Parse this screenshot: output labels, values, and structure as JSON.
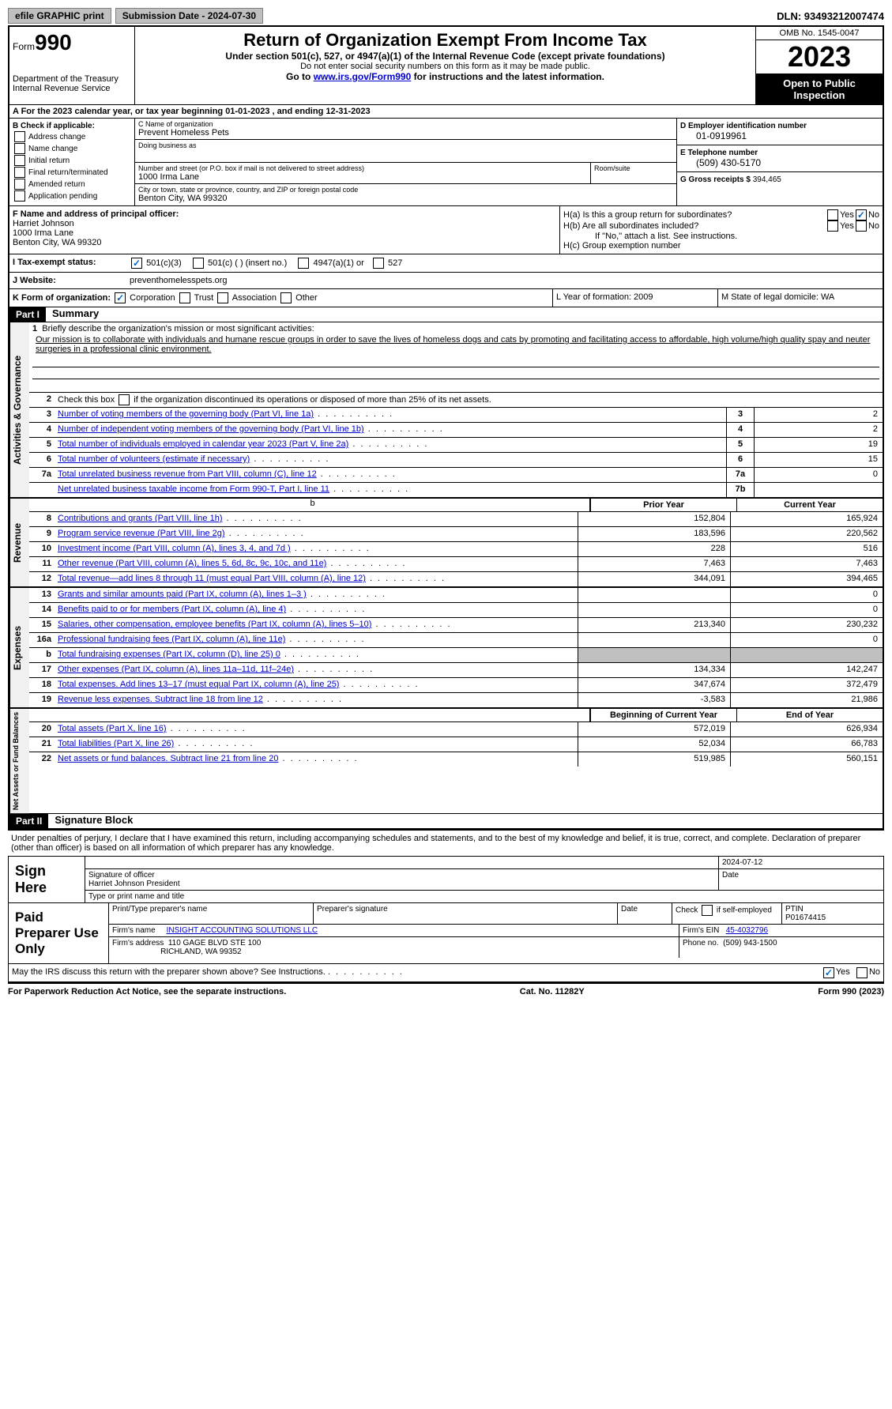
{
  "top_bar": {
    "efile_btn": "efile GRAPHIC print",
    "submission_label": "Submission Date - 2024-07-30",
    "dln": "DLN: 93493212007474"
  },
  "header": {
    "form_word": "Form",
    "form_number": "990",
    "title": "Return of Organization Exempt From Income Tax",
    "subtitle": "Under section 501(c), 527, or 4947(a)(1) of the Internal Revenue Code (except private foundations)",
    "ssn_note": "Do not enter social security numbers on this form as it may be made public.",
    "goto": "Go to ",
    "goto_link": "www.irs.gov/Form990",
    "goto_suffix": " for instructions and the latest information.",
    "dept": "Department of the Treasury",
    "irs": "Internal Revenue Service",
    "omb": "OMB No. 1545-0047",
    "year": "2023",
    "open": "Open to Public Inspection"
  },
  "row_a": {
    "text": "A  For the 2023 calendar year, or tax year beginning 01-01-2023    , and ending 12-31-2023"
  },
  "col_b": {
    "label": "B Check if applicable:",
    "items": [
      "Address change",
      "Name change",
      "Initial return",
      "Final return/terminated",
      "Amended return",
      "Application pending"
    ]
  },
  "col_c": {
    "name_label": "C Name of organization",
    "name_value": "Prevent Homeless Pets",
    "dba_label": "Doing business as",
    "dba_value": "",
    "street_label": "Number and street (or P.O. box if mail is not delivered to street address)",
    "street_value": "1000 Irma Lane",
    "room_label": "Room/suite",
    "city_label": "City or town, state or province, country, and ZIP or foreign postal code",
    "city_value": "Benton City, WA  99320"
  },
  "col_d": {
    "ein_label": "D Employer identification number",
    "ein_value": "01-0919961",
    "phone_label": "E Telephone number",
    "phone_value": "(509) 430-5170",
    "gross_label": "G Gross receipts $",
    "gross_value": "394,465"
  },
  "col_f": {
    "label": "F  Name and address of principal officer:",
    "name": "Harriet Johnson",
    "street": "1000 Irma Lane",
    "city": "Benton City, WA  99320"
  },
  "col_h": {
    "ha_label": "H(a)  Is this a group return for subordinates?",
    "hb_label": "H(b)  Are all subordinates included?",
    "hb_note": "If \"No,\" attach a list. See instructions.",
    "hc_label": "H(c)  Group exemption number",
    "yes": "Yes",
    "no": "No"
  },
  "row_i": {
    "label": "I       Tax-exempt status:",
    "opt1": "501(c)(3)",
    "opt2": "501(c) (  ) (insert no.)",
    "opt3": "4947(a)(1) or",
    "opt4": "527"
  },
  "row_j": {
    "label": "J      Website:",
    "value": "preventhomelesspets.org"
  },
  "row_k": {
    "label": "K Form of organization:",
    "opts": [
      "Corporation",
      "Trust",
      "Association",
      "Other"
    ]
  },
  "row_l": {
    "label": "L Year of formation: 2009"
  },
  "row_m": {
    "label": "M State of legal domicile: WA"
  },
  "part1": {
    "header": "Part I",
    "title": "Summary",
    "line1_label": "Briefly describe the organization's mission or most significant activities:",
    "line1_text": "Our mission is to collaborate with individuals and humane rescue groups in order to save the lives of homeless dogs and cats by promoting and facilitating access to affordable, high volume/high quality spay and neuter surgeries in a professional clinic environment.",
    "line2": "Check this box       if the organization discontinued its operations or disposed of more than 25% of its net assets.",
    "activities_label": "Activities & Governance",
    "revenue_label": "Revenue",
    "expenses_label": "Expenses",
    "netassets_label": "Net Assets or Fund Balances",
    "col_prior": "Prior Year",
    "col_current": "Current Year",
    "col_begin": "Beginning of Current Year",
    "col_end": "End of Year",
    "rows_gov": [
      {
        "num": "3",
        "desc": "Number of voting members of the governing body (Part VI, line 1a)",
        "box": "3",
        "val": "2"
      },
      {
        "num": "4",
        "desc": "Number of independent voting members of the governing body (Part VI, line 1b)",
        "box": "4",
        "val": "2"
      },
      {
        "num": "5",
        "desc": "Total number of individuals employed in calendar year 2023 (Part V, line 2a)",
        "box": "5",
        "val": "19"
      },
      {
        "num": "6",
        "desc": "Total number of volunteers (estimate if necessary)",
        "box": "6",
        "val": "15"
      },
      {
        "num": "7a",
        "desc": "Total unrelated business revenue from Part VIII, column (C), line 12",
        "box": "7a",
        "val": "0"
      },
      {
        "num": "",
        "desc": "Net unrelated business taxable income from Form 990-T, Part I, line 11",
        "box": "7b",
        "val": ""
      }
    ],
    "rows_rev": [
      {
        "num": "8",
        "desc": "Contributions and grants (Part VIII, line 1h)",
        "prior": "152,804",
        "curr": "165,924"
      },
      {
        "num": "9",
        "desc": "Program service revenue (Part VIII, line 2g)",
        "prior": "183,596",
        "curr": "220,562"
      },
      {
        "num": "10",
        "desc": "Investment income (Part VIII, column (A), lines 3, 4, and 7d )",
        "prior": "228",
        "curr": "516"
      },
      {
        "num": "11",
        "desc": "Other revenue (Part VIII, column (A), lines 5, 6d, 8c, 9c, 10c, and 11e)",
        "prior": "7,463",
        "curr": "7,463"
      },
      {
        "num": "12",
        "desc": "Total revenue—add lines 8 through 11 (must equal Part VIII, column (A), line 12)",
        "prior": "344,091",
        "curr": "394,465"
      }
    ],
    "rows_exp": [
      {
        "num": "13",
        "desc": "Grants and similar amounts paid (Part IX, column (A), lines 1–3 )",
        "prior": "",
        "curr": "0"
      },
      {
        "num": "14",
        "desc": "Benefits paid to or for members (Part IX, column (A), line 4)",
        "prior": "",
        "curr": "0"
      },
      {
        "num": "15",
        "desc": "Salaries, other compensation, employee benefits (Part IX, column (A), lines 5–10)",
        "prior": "213,340",
        "curr": "230,232"
      },
      {
        "num": "16a",
        "desc": "Professional fundraising fees (Part IX, column (A), line 11e)",
        "prior": "",
        "curr": "0"
      },
      {
        "num": "b",
        "desc": "Total fundraising expenses (Part IX, column (D), line 25) 0",
        "prior": "SHADED",
        "curr": "SHADED"
      },
      {
        "num": "17",
        "desc": "Other expenses (Part IX, column (A), lines 11a–11d, 11f–24e)",
        "prior": "134,334",
        "curr": "142,247"
      },
      {
        "num": "18",
        "desc": "Total expenses. Add lines 13–17 (must equal Part IX, column (A), line 25)",
        "prior": "347,674",
        "curr": "372,479"
      },
      {
        "num": "19",
        "desc": "Revenue less expenses. Subtract line 18 from line 12",
        "prior": "-3,583",
        "curr": "21,986"
      }
    ],
    "rows_net": [
      {
        "num": "20",
        "desc": "Total assets (Part X, line 16)",
        "prior": "572,019",
        "curr": "626,934"
      },
      {
        "num": "21",
        "desc": "Total liabilities (Part X, line 26)",
        "prior": "52,034",
        "curr": "66,783"
      },
      {
        "num": "22",
        "desc": "Net assets or fund balances. Subtract line 21 from line 20",
        "prior": "519,985",
        "curr": "560,151"
      }
    ]
  },
  "part2": {
    "header": "Part II",
    "title": "Signature Block",
    "perjury": "Under penalties of perjury, I declare that I have examined this return, including accompanying schedules and statements, and to the best of my knowledge and belief, it is true, correct, and complete. Declaration of preparer (other than officer) is based on all information of which preparer has any knowledge."
  },
  "sign_here": {
    "label": "Sign Here",
    "sig_officer": "Signature of officer",
    "date": "2024-07-12",
    "name_title": "Harriet Johnson  President",
    "type_label": "Type or print name and title"
  },
  "paid_prep": {
    "label": "Paid Preparer Use Only",
    "print_label": "Print/Type preparer's name",
    "sig_label": "Preparer's signature",
    "date_label": "Date",
    "check_label": "Check       if self-employed",
    "ptin_label": "PTIN",
    "ptin_value": "P01674415",
    "firm_name_label": "Firm's name",
    "firm_name": "INSIGHT ACCOUNTING SOLUTIONS LLC",
    "firm_ein_label": "Firm's EIN",
    "firm_ein": "45-4032796",
    "firm_addr_label": "Firm's address",
    "firm_addr1": "110 GAGE BLVD STE 100",
    "firm_addr2": "RICHLAND, WA  99352",
    "phone_label": "Phone no.",
    "phone": "(509) 943-1500"
  },
  "discuss": {
    "text": "May the IRS discuss this return with the preparer shown above? See Instructions.",
    "yes": "Yes",
    "no": "No"
  },
  "footer": {
    "left": "For Paperwork Reduction Act Notice, see the separate instructions.",
    "center": "Cat. No. 11282Y",
    "right": "Form 990 (2023)"
  }
}
